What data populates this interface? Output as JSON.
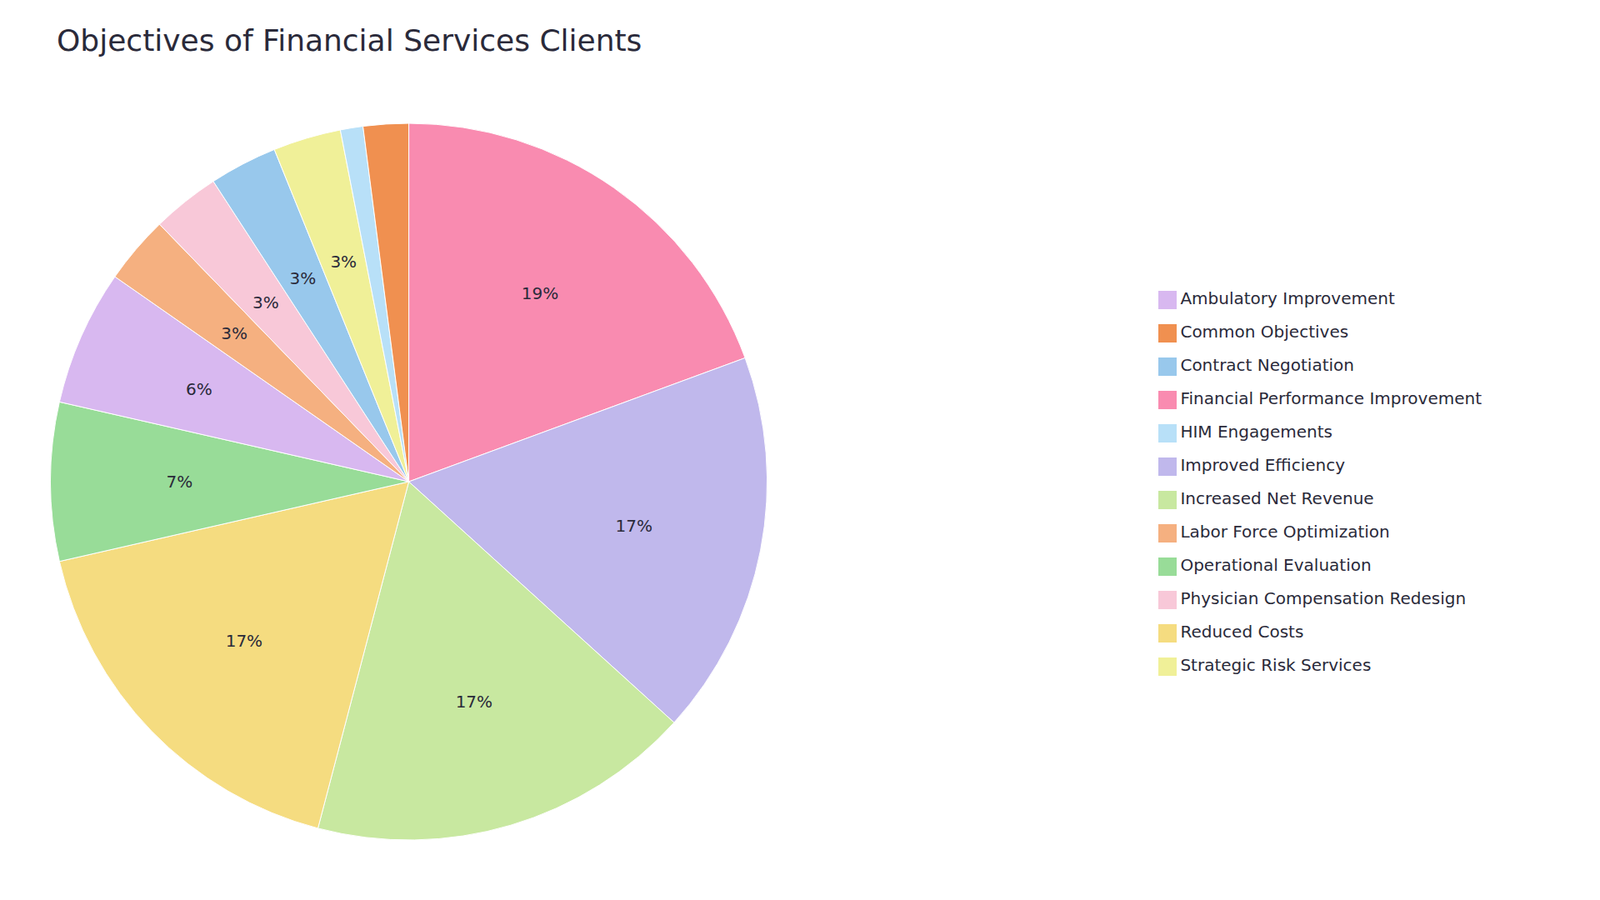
{
  "chart_data": {
    "type": "pie",
    "title": "Objectives of Financial Services Clients",
    "categories": [
      "Financial Performance Improvement",
      "Improved Efficiency",
      "Increased Net Revenue",
      "Reduced Costs",
      "Operational Evaluation",
      "Ambulatory Improvement",
      "Labor Force Optimization",
      "Physician Compensation Redesign",
      "Contract Negotiation",
      "Strategic Risk Services",
      "HIM Engagements",
      "Common Objectives"
    ],
    "values": [
      19,
      17,
      17,
      17,
      7,
      6,
      3,
      3,
      3,
      3,
      1,
      2
    ],
    "value_labels": [
      "19%",
      "17%",
      "17%",
      "17%",
      "7%",
      "6%",
      "3%",
      "3%",
      "3%",
      "3%",
      null,
      null
    ],
    "colors": [
      "#F98BB0",
      "#C0B8EC",
      "#C8E8A0",
      "#F5DC80",
      "#98DC98",
      "#D8B8F0",
      "#F5B080",
      "#F8C8D8",
      "#98C8EC",
      "#F0F098",
      "#B8E0F8",
      "#F09050"
    ],
    "data_labels": true,
    "legend": "right"
  }
}
